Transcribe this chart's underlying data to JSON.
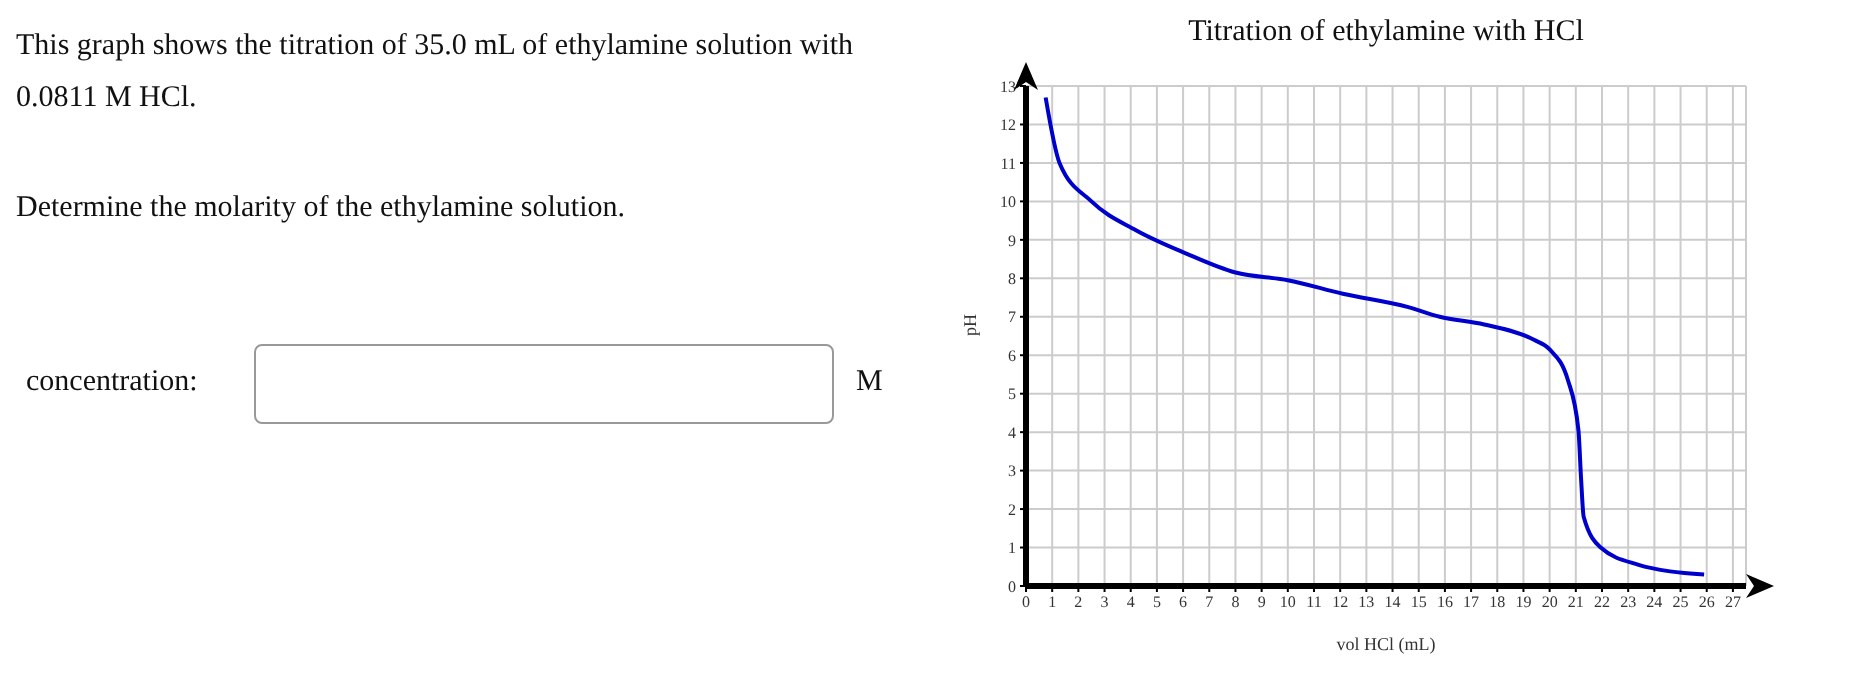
{
  "chart_data": {
    "type": "line",
    "title": "Titration of ethylamine with HCl",
    "xlabel": "vol HCl (mL)",
    "ylabel": "pH",
    "annotations": [
      "This graph shows the titration of 35.0 mL of ethylamine solution with 0.0811 M HCl.",
      "Determine the molarity of the ethylamine solution.",
      "concentration:",
      "M"
    ],
    "x": [
      0.75,
      1.28,
      2.5,
      4.2,
      6.1,
      8,
      10,
      12.1,
      14.6,
      15.8,
      17.5,
      19.4,
      20,
      20.7,
      21.1,
      21.2,
      21.3,
      21.95,
      23.4,
      24.6,
      25.9
    ],
    "series": [
      {
        "color": "#0000cc",
        "values": [
          12.7,
          11.0,
          10.0,
          9.25,
          8.65,
          8.15,
          7.95,
          7.6,
          7.25,
          7.0,
          6.8,
          6.4,
          6.15,
          5.35,
          4.05,
          2.8,
          1.8,
          1.0,
          0.55,
          0.38,
          0.3
        ]
      }
    ],
    "xlim": [
      0,
      27.5
    ],
    "xticks": [
      0,
      1,
      2,
      3,
      4,
      5,
      6,
      7,
      8,
      9,
      10,
      11,
      12,
      13,
      14,
      15,
      16,
      17,
      18,
      19,
      20,
      21,
      22,
      23,
      24,
      25,
      26,
      27
    ],
    "ylim": [
      0,
      13
    ],
    "yticks": [
      0,
      1,
      2,
      3,
      4,
      5,
      6,
      7,
      8,
      9,
      10,
      11,
      12,
      13
    ],
    "grid": true,
    "marker": "none",
    "line_style": "solid"
  }
}
